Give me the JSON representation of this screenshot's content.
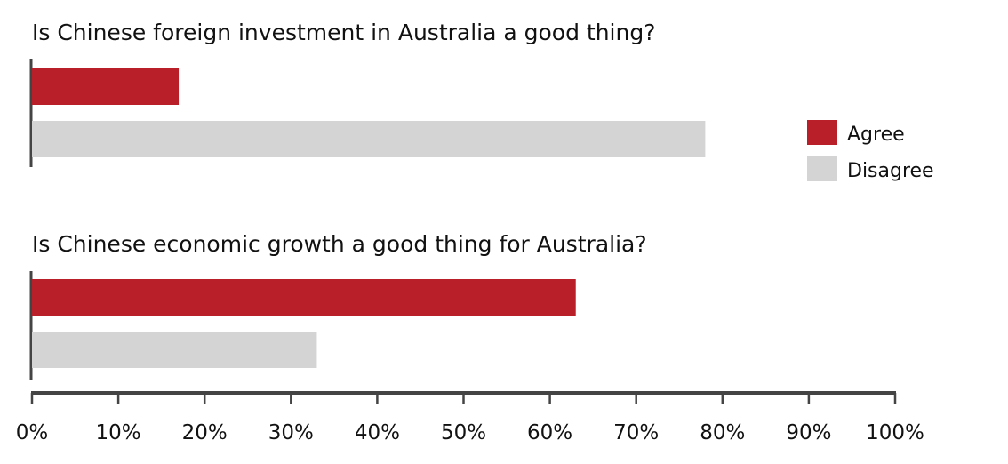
{
  "chart_data": {
    "type": "bar",
    "orientation": "horizontal",
    "panels": [
      {
        "title": "Is Chinese foreign investment in Australia a good thing?",
        "values": {
          "Agree": 17,
          "Disagree": 78
        }
      },
      {
        "title": "Is Chinese economic growth a good thing for Australia?",
        "values": {
          "Agree": 63,
          "Disagree": 33
        }
      }
    ],
    "series": [
      {
        "name": "Agree",
        "color": "#b81f29"
      },
      {
        "name": "Disagree",
        "color": "#d4d4d4"
      }
    ],
    "xlim": [
      0,
      100
    ],
    "xticks": [
      0,
      10,
      20,
      30,
      40,
      50,
      60,
      70,
      80,
      90,
      100
    ],
    "tick_labels": [
      "0%",
      "10%",
      "20%",
      "30%",
      "40%",
      "50%",
      "60%",
      "70%",
      "80%",
      "90%",
      "100%"
    ],
    "legend_position": "right",
    "grid": false
  }
}
